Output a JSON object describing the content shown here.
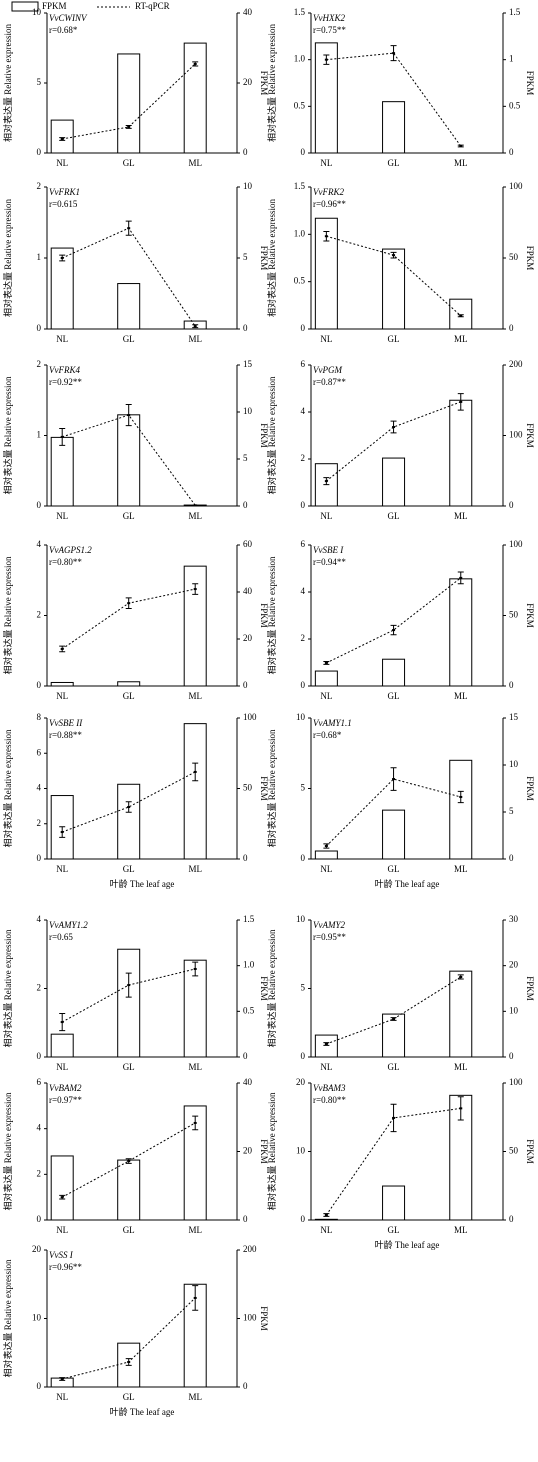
{
  "legend": [
    {
      "name": "FPKM"
    },
    {
      "name": "RT-qPCR"
    }
  ],
  "chart_data": [
    {
      "type": "bar",
      "title": "VvCWINV",
      "annotation": "r=0.68*",
      "categories": [
        "NL",
        "GL",
        "ML"
      ],
      "ylabel": "相对表达量 Relative expression",
      "y2label": "FPKM",
      "ylim": [
        0,
        10
      ],
      "yticks": [
        0,
        5,
        10
      ],
      "y2lim": [
        0,
        40
      ],
      "y2ticks": [
        0,
        20,
        40
      ],
      "series": [
        {
          "type": "bar",
          "axis": "y2",
          "color": "#ffffff",
          "values": [
            9.4,
            28.3,
            31.4
          ]
        },
        {
          "type": "line",
          "color": "#000000",
          "values": [
            1.0,
            1.86,
            6.36
          ],
          "errors": [
            0.1,
            0.1,
            0.15
          ]
        }
      ]
    },
    {
      "type": "bar",
      "title": "VvHXK2",
      "annotation": "r=0.75**",
      "categories": [
        "NL",
        "GL",
        "ML"
      ],
      "ylabel": "相对表达量 Relative expression",
      "y2label": "FPKM",
      "ylim": [
        0,
        1.5
      ],
      "yticks": [
        0,
        0.5,
        {
          "value": 1,
          "label": "1.0"
        },
        1.5
      ],
      "y2lim": [
        0,
        1.5
      ],
      "y2ticks": [
        0,
        0.5,
        1,
        1.5
      ],
      "series": [
        {
          "type": "bar",
          "axis": "y2",
          "color": "#ffffff",
          "values": [
            1.18,
            0.55,
            0
          ]
        },
        {
          "type": "line",
          "color": "#000000",
          "values": [
            1.0,
            1.07,
            0.075
          ],
          "errors": [
            0.05,
            0.08,
            0.01
          ]
        }
      ]
    },
    {
      "type": "bar",
      "title": "VvFRK1",
      "annotation": "r=0.615",
      "categories": [
        "NL",
        "GL",
        "ML"
      ],
      "ylabel": "相对表达量 Relative expression",
      "y2label": "FPKM",
      "ylim": [
        0,
        2
      ],
      "yticks": [
        0,
        1,
        2
      ],
      "y2lim": [
        0,
        10
      ],
      "y2ticks": [
        0,
        5,
        10
      ],
      "series": [
        {
          "type": "bar",
          "axis": "y2",
          "color": "#ffffff",
          "values": [
            5.7,
            3.2,
            0.56
          ]
        },
        {
          "type": "line",
          "color": "#000000",
          "values": [
            1.0,
            1.42,
            0.04
          ],
          "errors": [
            0.04,
            0.1,
            0.02
          ]
        }
      ]
    },
    {
      "type": "bar",
      "title": "VvFRK2",
      "annotation": "r=0.96**",
      "categories": [
        "NL",
        "GL",
        "ML"
      ],
      "ylabel": "相对表达量 Relative expression",
      "y2label": "FPKM",
      "ylim": [
        0,
        1.5
      ],
      "yticks": [
        0,
        0.5,
        {
          "value": 1,
          "label": "1.0"
        },
        1.5
      ],
      "y2lim": [
        0,
        100
      ],
      "y2ticks": [
        0,
        50,
        100
      ],
      "series": [
        {
          "type": "bar",
          "axis": "y2",
          "color": "#ffffff",
          "values": [
            78,
            56.3,
            21
          ]
        },
        {
          "type": "line",
          "color": "#000000",
          "values": [
            0.98,
            0.78,
            0.14
          ],
          "errors": [
            0.05,
            0.03,
            0.01
          ]
        }
      ]
    },
    {
      "type": "bar",
      "title": "VvFRK4",
      "annotation": "r=0.92**",
      "categories": [
        "NL",
        "GL",
        "ML"
      ],
      "ylabel": "相对表达量 Relative expression",
      "y2label": "FPKM",
      "ylim": [
        0,
        2
      ],
      "yticks": [
        0,
        1,
        2
      ],
      "y2lim": [
        0,
        15
      ],
      "y2ticks": [
        0,
        5,
        10,
        15
      ],
      "series": [
        {
          "type": "bar",
          "axis": "y2",
          "color": "#ffffff",
          "values": [
            7.3,
            9.7,
            0.1
          ]
        },
        {
          "type": "line",
          "color": "#000000",
          "values": [
            0.98,
            1.29,
            0.01
          ],
          "errors": [
            0.12,
            0.15,
            0
          ]
        }
      ]
    },
    {
      "type": "bar",
      "title": "VvPGM",
      "annotation": "r=0.87**",
      "categories": [
        "NL",
        "GL",
        "ML"
      ],
      "ylabel": "相对表达量 Relative expression",
      "y2label": "FPKM",
      "ylim": [
        0,
        6
      ],
      "yticks": [
        0,
        2,
        4,
        6
      ],
      "y2lim": [
        0,
        200
      ],
      "y2ticks": [
        0,
        100,
        200
      ],
      "series": [
        {
          "type": "bar",
          "axis": "y2",
          "color": "#ffffff",
          "values": [
            60,
            68,
            150
          ]
        },
        {
          "type": "line",
          "color": "#000000",
          "values": [
            1.06,
            3.36,
            4.43
          ],
          "errors": [
            0.15,
            0.25,
            0.35
          ]
        }
      ]
    },
    {
      "type": "bar",
      "title": "VvAGPS1.2",
      "annotation": "r=0.80**",
      "categories": [
        "NL",
        "GL",
        "ML"
      ],
      "ylabel": "相对表达量 Relative expression",
      "y2label": "FPKM",
      "ylim": [
        0,
        4
      ],
      "yticks": [
        0,
        2,
        4
      ],
      "y2lim": [
        0,
        60
      ],
      "y2ticks": [
        0,
        20,
        40,
        60
      ],
      "series": [
        {
          "type": "bar",
          "axis": "y2",
          "color": "#ffffff",
          "values": [
            1.5,
            1.8,
            51
          ]
        },
        {
          "type": "line",
          "color": "#000000",
          "values": [
            1.05,
            2.35,
            2.75
          ],
          "errors": [
            0.08,
            0.15,
            0.15
          ]
        }
      ]
    },
    {
      "type": "bar",
      "title": "VvSBE I",
      "annotation": "r=0.94**",
      "categories": [
        "NL",
        "GL",
        "ML"
      ],
      "ylabel": "相对表达量 Relative expression",
      "y2label": "FPKM",
      "ylim": [
        0,
        6
      ],
      "yticks": [
        0,
        2,
        4,
        6
      ],
      "y2lim": [
        0,
        100
      ],
      "y2ticks": [
        0,
        50,
        100
      ],
      "series": [
        {
          "type": "bar",
          "axis": "y2",
          "color": "#ffffff",
          "values": [
            10.6,
            19,
            76
          ]
        },
        {
          "type": "line",
          "color": "#000000",
          "values": [
            0.98,
            2.38,
            4.6
          ],
          "errors": [
            0.06,
            0.2,
            0.25
          ]
        }
      ]
    },
    {
      "type": "bar",
      "title": "VvSBE II",
      "annotation": "r=0.88**",
      "categories": [
        "NL",
        "GL",
        "ML"
      ],
      "xlabel": "叶龄 The leaf age",
      "ylabel": "相对表达量 Relative expression",
      "y2label": "FPKM",
      "ylim": [
        0,
        8
      ],
      "yticks": [
        0,
        2,
        4,
        6,
        8
      ],
      "y2lim": [
        0,
        100
      ],
      "y2ticks": [
        0,
        50,
        100
      ],
      "series": [
        {
          "type": "bar",
          "axis": "y2",
          "color": "#ffffff",
          "values": [
            45,
            53,
            96
          ]
        },
        {
          "type": "line",
          "color": "#000000",
          "values": [
            1.53,
            2.95,
            4.94
          ],
          "errors": [
            0.3,
            0.3,
            0.5
          ]
        }
      ]
    },
    {
      "type": "bar",
      "title": "VvAMY1.1",
      "annotation": "r=0.68*",
      "categories": [
        "NL",
        "GL",
        "ML"
      ],
      "xlabel": "叶龄 The leaf age",
      "ylabel": "相对表达量 Relative expression",
      "y2label": "FPKM",
      "ylim": [
        0,
        10
      ],
      "yticks": [
        0,
        5,
        10
      ],
      "y2lim": [
        0,
        15
      ],
      "y2ticks": [
        0,
        5,
        10,
        15
      ],
      "series": [
        {
          "type": "bar",
          "axis": "y2",
          "color": "#ffffff",
          "values": [
            0.85,
            5.2,
            10.5
          ]
        },
        {
          "type": "line",
          "color": "#000000",
          "values": [
            0.92,
            5.67,
            4.4
          ],
          "errors": [
            0.15,
            0.8,
            0.4
          ]
        }
      ]
    },
    {
      "type": "bar",
      "title": "VvAMY1.2",
      "annotation": "r=0.65",
      "categories": [
        "NL",
        "GL",
        "ML"
      ],
      "ylabel": "相对表达量 Relative expression",
      "y2label": "FPKM",
      "ylim": [
        0,
        4
      ],
      "yticks": [
        0,
        2,
        4
      ],
      "y2lim": [
        0,
        1.5
      ],
      "y2ticks": [
        0,
        0.5,
        {
          "value": 1,
          "label": "1.0"
        },
        1.5
      ],
      "series": [
        {
          "type": "bar",
          "axis": "y2",
          "color": "#ffffff",
          "values": [
            0.25,
            1.18,
            1.06
          ]
        },
        {
          "type": "line",
          "color": "#000000",
          "values": [
            1.02,
            2.1,
            2.57
          ],
          "errors": [
            0.25,
            0.35,
            0.2
          ]
        }
      ]
    },
    {
      "type": "bar",
      "title": "VvAMY2",
      "annotation": "r=0.95**",
      "categories": [
        "NL",
        "GL",
        "ML"
      ],
      "ylabel": "相对表达量 Relative expression",
      "y2label": "FPKM",
      "ylim": [
        0,
        10
      ],
      "yticks": [
        0,
        5,
        10
      ],
      "y2lim": [
        0,
        30
      ],
      "y2ticks": [
        0,
        10,
        20,
        30
      ],
      "series": [
        {
          "type": "bar",
          "axis": "y2",
          "color": "#ffffff",
          "values": [
            4.8,
            9.4,
            18.8
          ]
        },
        {
          "type": "line",
          "color": "#000000",
          "values": [
            0.95,
            2.77,
            5.84
          ],
          "errors": [
            0.1,
            0.1,
            0.15
          ]
        }
      ]
    },
    {
      "type": "bar",
      "title": "VvBAM2",
      "annotation": "r=0.97**",
      "categories": [
        "NL",
        "GL",
        "ML"
      ],
      "ylabel": "相对表达量 Relative expression",
      "y2label": "FPKM",
      "ylim": [
        0,
        6
      ],
      "yticks": [
        0,
        2,
        4,
        6
      ],
      "y2lim": [
        0,
        40
      ],
      "y2ticks": [
        0,
        20,
        40
      ],
      "series": [
        {
          "type": "bar",
          "axis": "y2",
          "color": "#ffffff",
          "values": [
            18.7,
            17.5,
            33.3
          ]
        },
        {
          "type": "line",
          "color": "#000000",
          "values": [
            1.0,
            2.58,
            4.25
          ],
          "errors": [
            0.08,
            0.1,
            0.3
          ]
        }
      ]
    },
    {
      "type": "bar",
      "title": "VvBAM3",
      "annotation": "r=0.80**",
      "categories": [
        "NL",
        "GL",
        "ML"
      ],
      "xlabel": "叶龄 The leaf age",
      "ylabel": "相对表达量 Relative expression",
      "y2label": "FPKM",
      "ylim": [
        0,
        20
      ],
      "yticks": [
        0,
        10,
        20
      ],
      "y2lim": [
        0,
        100
      ],
      "y2ticks": [
        0,
        50,
        100
      ],
      "series": [
        {
          "type": "bar",
          "axis": "y2",
          "color": "#ffffff",
          "values": [
            0.5,
            24.8,
            91
          ]
        },
        {
          "type": "line",
          "color": "#000000",
          "values": [
            0.73,
            14.9,
            16.3
          ],
          "errors": [
            0.2,
            2,
            1.7
          ]
        }
      ]
    },
    {
      "type": "bar",
      "title": "VvSS I",
      "annotation": "r=0.96**",
      "categories": [
        "NL",
        "GL",
        "ML"
      ],
      "xlabel": "叶龄 The leaf age",
      "ylabel": "相对表达量 Relative expression",
      "y2label": "FPKM",
      "ylim": [
        0,
        20
      ],
      "yticks": [
        0,
        10,
        20
      ],
      "y2lim": [
        0,
        200
      ],
      "y2ticks": [
        0,
        100,
        200
      ],
      "series": [
        {
          "type": "bar",
          "axis": "y2",
          "color": "#ffffff",
          "values": [
            13,
            64,
            150
          ]
        },
        {
          "type": "line",
          "color": "#000000",
          "values": [
            1.17,
            3.65,
            13
          ],
          "errors": [
            0.2,
            0.5,
            1.8
          ]
        }
      ]
    }
  ]
}
